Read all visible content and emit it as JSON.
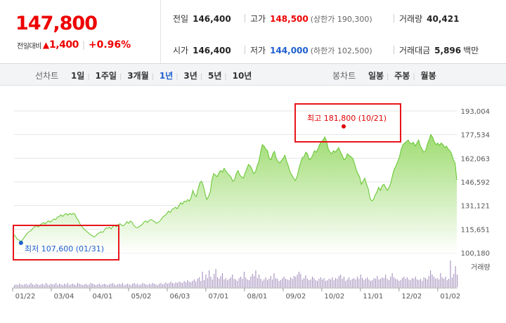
{
  "quote": {
    "price": "147,800",
    "diff_label": "전일대비",
    "diff_arrow": "▲",
    "diff_amount": "1,400",
    "diff_pct": "+0.96%",
    "row1": {
      "prev_label": "전일",
      "prev_value": "146,400",
      "high_label": "고가",
      "high_value": "148,500",
      "high_sub": "(상한가 190,300)",
      "vol_label": "거래량",
      "vol_value": "40,421"
    },
    "row2": {
      "open_label": "시가",
      "open_value": "146,400",
      "low_label": "저가",
      "low_value": "144,000",
      "low_sub": "(하한가 102,500)",
      "amt_label": "거래대금",
      "amt_value": "5,896",
      "amt_unit": "백만"
    }
  },
  "toolbar": {
    "line_title": "선차트",
    "periods": [
      "1일",
      "1주일",
      "3개월",
      "1년",
      "3년",
      "5년",
      "10년"
    ],
    "active_period": "1년",
    "candle_title": "봉차트",
    "candles": [
      "일봉",
      "주봉",
      "월봉"
    ]
  },
  "colors": {
    "up": "#e00000",
    "down": "#1e5fcf",
    "line": "#62c52c",
    "volume": "#9b86b8",
    "annotation_box": "#e8141a"
  },
  "chart_data": {
    "type": "area",
    "y_ticks": [
      100180,
      115651,
      131121,
      146592,
      162063,
      177534,
      193004
    ],
    "y_tick_labels": [
      "100,180",
      "115,651",
      "131,121",
      "146,592",
      "162,063",
      "177,534",
      "193,004"
    ],
    "ylim": [
      100180,
      193004
    ],
    "x_tick_labels": [
      "01/22",
      "03/04",
      "04/01",
      "05/02",
      "06/03",
      "07/01",
      "08/01",
      "09/02",
      "10/02",
      "11/01",
      "12/02",
      "01/02"
    ],
    "high_annotation": "최고 181,800 (10/21)",
    "low_annotation": "최저 107,600 (01/31)",
    "high_value": 181800,
    "low_value": 107600,
    "volume_label": "거래량",
    "grid": true,
    "price_series": [
      112000,
      110500,
      109000,
      108500,
      107600,
      108800,
      110500,
      112000,
      113500,
      114200,
      115000,
      116500,
      117200,
      118000,
      117000,
      118500,
      119200,
      120000,
      119000,
      120500,
      121000,
      120200,
      121500,
      122300,
      122000,
      123500,
      124000,
      125000,
      124000,
      125200,
      125800,
      124800,
      126000,
      125200,
      126000,
      125500,
      123000,
      121500,
      119000,
      117500,
      116000,
      115000,
      114000,
      113000,
      112000,
      111500,
      110500,
      111200,
      112500,
      113200,
      114000,
      113500,
      115000,
      116500,
      116200,
      117000,
      115800,
      117500,
      118000,
      117200,
      118500,
      119200,
      118200,
      117800,
      119000,
      120500,
      119500,
      121000,
      120000,
      118000,
      117000,
      116500,
      117200,
      118000,
      119000,
      120500,
      121000,
      120000,
      121500,
      122000,
      121200,
      120500,
      119500,
      120000,
      121000,
      122500,
      124000,
      124500,
      126000,
      127500,
      126500,
      128500,
      129200,
      130000,
      129000,
      131000,
      133000,
      132000,
      134000,
      133500,
      135000,
      134000,
      136500,
      141000,
      138000,
      137000,
      142000,
      146000,
      147000,
      144000,
      139000,
      135000,
      137000,
      140000,
      148000,
      152000,
      151000,
      150000,
      152500,
      154000,
      153000,
      155500,
      153500,
      152000,
      151000,
      149500,
      147000,
      148000,
      152000,
      154000,
      151000,
      150000,
      149000,
      152000,
      155000,
      158000,
      157000,
      155000,
      152000,
      153000,
      157000,
      160000,
      166000,
      171000,
      170000,
      168000,
      167000,
      162000,
      161000,
      165000,
      166500,
      162000,
      160000,
      159000,
      160500,
      162000,
      164000,
      160000,
      157000,
      153000,
      151000,
      149000,
      147500,
      150000,
      155000,
      159000,
      162500,
      163000,
      166000,
      165000,
      161000,
      162000,
      164000,
      167000,
      166000,
      168000,
      171000,
      173000,
      174000,
      176000,
      173000,
      168000,
      166000,
      165000,
      167000,
      166000,
      167500,
      169000,
      166000,
      164000,
      161000,
      162000,
      165000,
      164000,
      163000,
      162000,
      159000,
      155000,
      152000,
      150000,
      145000,
      147000,
      149000,
      145000,
      142000,
      136000,
      134000,
      135000,
      138000,
      140000,
      143000,
      141000,
      144000,
      145000,
      143000,
      141000,
      143000,
      146000,
      151000,
      155000,
      157000,
      160000,
      163000,
      168000,
      171000,
      172000,
      173000,
      174000,
      172000,
      171500,
      172500,
      170000,
      172000,
      174000,
      170000,
      168000,
      166000,
      167000,
      171000,
      174000,
      177500,
      176000,
      173000,
      171000,
      172000,
      170500,
      172000,
      171000,
      169000,
      170000,
      168000,
      167000,
      165000,
      161000,
      159000,
      147800
    ],
    "volume_series": [
      3,
      4,
      3,
      5,
      4,
      3,
      4,
      5,
      3,
      4,
      6,
      4,
      3,
      5,
      4,
      3,
      4,
      5,
      3,
      6,
      4,
      3,
      5,
      4,
      4,
      6,
      3,
      5,
      4,
      3,
      5,
      4,
      6,
      3,
      4,
      5,
      4,
      3,
      6,
      5,
      4,
      3,
      4,
      5,
      3,
      4,
      6,
      5,
      4,
      3,
      4,
      5,
      3,
      4,
      5,
      4,
      3,
      4,
      5,
      6,
      4,
      3,
      4,
      5,
      4,
      6,
      3,
      4,
      5,
      4,
      3,
      5,
      6,
      4,
      5,
      3,
      4,
      6,
      5,
      4,
      3,
      5,
      4,
      6,
      5,
      4,
      3,
      5,
      6,
      4,
      5,
      7,
      5,
      6,
      8,
      6,
      5,
      7,
      6,
      8,
      7,
      6,
      9,
      7,
      10,
      8,
      7,
      9,
      11,
      8,
      12,
      14,
      9,
      22,
      10,
      18,
      13,
      24,
      15,
      11,
      19,
      26,
      14,
      12,
      16,
      20,
      11,
      13,
      10,
      12,
      14,
      18,
      12,
      11,
      9,
      13,
      15,
      12,
      22,
      14,
      11,
      10,
      15,
      19,
      16,
      24,
      13,
      18,
      12,
      9,
      11,
      14,
      10,
      12,
      16,
      11,
      20,
      13,
      12,
      9,
      10,
      13,
      15,
      12,
      11,
      10,
      14,
      12,
      16,
      15,
      18,
      22,
      19,
      11,
      13,
      17,
      12,
      10,
      11,
      15,
      13,
      10,
      9,
      12,
      14,
      11,
      13,
      9,
      10,
      12,
      11,
      14,
      10,
      13,
      12,
      16,
      18,
      12,
      15,
      9,
      11,
      14,
      10,
      12,
      13,
      11,
      15,
      12,
      18,
      13,
      10,
      12,
      14,
      11,
      9,
      10,
      13,
      12,
      16,
      11,
      12,
      14,
      13,
      18,
      12,
      10,
      15,
      20,
      14,
      12,
      11,
      9,
      10,
      13,
      15,
      12,
      14,
      11,
      10,
      13,
      12,
      15,
      11,
      10,
      12,
      9,
      14,
      13,
      11,
      16,
      24,
      18,
      15,
      12,
      13,
      11,
      20,
      14,
      12,
      15,
      10,
      12,
      38,
      14,
      19,
      30,
      18
    ]
  }
}
